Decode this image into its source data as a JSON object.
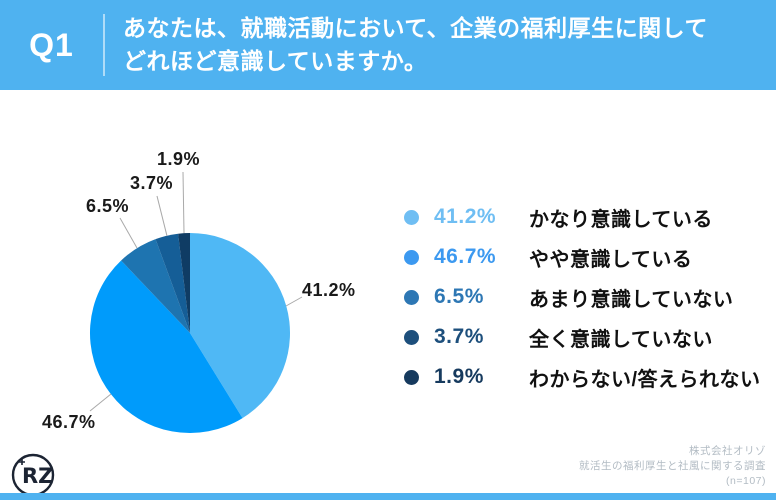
{
  "header": {
    "q_label": "Q1",
    "question_line1": "あなたは、就職活動において、企業の福利厚生に関して",
    "question_line2": "どれほど意識していますか。",
    "bg_color": "#4FB2F0"
  },
  "chart_data": {
    "type": "pie",
    "title": "企業の福利厚生に関してどれほど意識していますか",
    "start_angle_deg": 0,
    "direction": "clockwise",
    "legend_position": "right",
    "slices": [
      {
        "label": "かなり意識している",
        "value": 41.2,
        "pct_label": "41.2%",
        "color": "#4FB8F5",
        "dot_color": "#6FBEF3"
      },
      {
        "label": "やや意識している",
        "value": 46.7,
        "pct_label": "46.7%",
        "color": "#009BFB",
        "dot_color": "#3C99F0"
      },
      {
        "label": "あまり意識していない",
        "value": 6.5,
        "pct_label": "6.5%",
        "color": "#1E74B0",
        "dot_color": "#2D77B4"
      },
      {
        "label": "全く意識していない",
        "value": 3.7,
        "pct_label": "3.7%",
        "color": "#155E97",
        "dot_color": "#1D4F7C"
      },
      {
        "label": "わからない/答えられない",
        "value": 1.9,
        "pct_label": "1.9%",
        "color": "#0F3C64",
        "dot_color": "#163A5E"
      }
    ]
  },
  "footer": {
    "company": "株式会社オリゾ",
    "survey": "就活生の福利厚生と社風に関する調査",
    "sample": "(n=107)",
    "logo_monogram": "RZ",
    "strip_color": "#4FB2F0"
  }
}
